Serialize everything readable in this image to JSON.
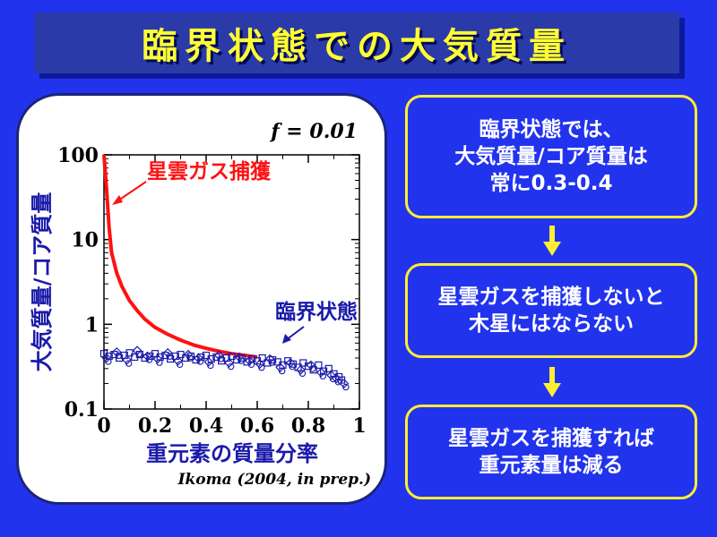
{
  "title": "臨界状態での大気質量",
  "flow": {
    "box1": "臨界状態では、\n大気質量/コア質量は\n常に0.3-0.4",
    "box2": "星雲ガスを捕獲しないと\n木星にはならない",
    "box3": "星雲ガスを捕獲すれば\n重元素量は減る"
  },
  "colors": {
    "background": "#2233ee",
    "title_text": "#ffff33",
    "box_border": "#ffee33",
    "arrow": "#ffee33",
    "curve": "#ff1111",
    "markers": "#1a1aaa",
    "axis_text": "#1a1aaa"
  },
  "chart_data": {
    "type": "line",
    "title": "",
    "param_label": "f = 0.01",
    "xlabel": "重元素の質量分率",
    "ylabel": "大気質量/コア質量",
    "credit": "Ikoma (2004, in prep.)",
    "xlim": [
      0,
      1
    ],
    "ylim": [
      0.1,
      100
    ],
    "yscale": "log",
    "xticks": [
      0,
      0.2,
      0.4,
      0.6,
      0.8,
      1
    ],
    "xtick_labels": [
      "0",
      "0.2",
      "0.4",
      "0.6",
      "0.8",
      "1"
    ],
    "yticks": [
      0.1,
      1,
      10,
      100
    ],
    "ytick_labels": [
      "0.1",
      "1",
      "10",
      "100"
    ],
    "grid": false,
    "annotations": [
      {
        "text": "星雲ガス捕獲",
        "color": "#ff1111"
      },
      {
        "text": "臨界状態",
        "color": "#1a1aaa"
      }
    ],
    "series": [
      {
        "name": "星雲ガス捕獲",
        "kind": "line",
        "color": "#ff1111",
        "x": [
          0.0,
          0.01,
          0.02,
          0.03,
          0.05,
          0.07,
          0.1,
          0.13,
          0.16,
          0.2,
          0.25,
          0.3,
          0.35,
          0.4,
          0.45,
          0.5,
          0.55,
          0.6
        ],
        "y": [
          100,
          40,
          14,
          7,
          4.0,
          2.8,
          1.9,
          1.45,
          1.15,
          0.92,
          0.76,
          0.65,
          0.57,
          0.52,
          0.48,
          0.45,
          0.43,
          0.41
        ]
      },
      {
        "name": "臨界状態",
        "kind": "scatter",
        "color": "#1a1aaa",
        "x": [
          0.0,
          0.02,
          0.04,
          0.06,
          0.08,
          0.1,
          0.12,
          0.14,
          0.16,
          0.18,
          0.2,
          0.22,
          0.24,
          0.26,
          0.28,
          0.3,
          0.32,
          0.34,
          0.36,
          0.38,
          0.4,
          0.42,
          0.44,
          0.46,
          0.48,
          0.5,
          0.52,
          0.54,
          0.56,
          0.58,
          0.6,
          0.62,
          0.64,
          0.66,
          0.68,
          0.7,
          0.72,
          0.74,
          0.76,
          0.78,
          0.8,
          0.82,
          0.84,
          0.86,
          0.88,
          0.9,
          0.92,
          0.93
        ],
        "y": [
          0.45,
          0.42,
          0.44,
          0.4,
          0.43,
          0.46,
          0.41,
          0.44,
          0.4,
          0.42,
          0.45,
          0.41,
          0.43,
          0.39,
          0.42,
          0.44,
          0.4,
          0.42,
          0.38,
          0.41,
          0.43,
          0.39,
          0.41,
          0.37,
          0.4,
          0.42,
          0.38,
          0.4,
          0.36,
          0.39,
          0.37,
          0.4,
          0.35,
          0.38,
          0.36,
          0.33,
          0.37,
          0.34,
          0.31,
          0.35,
          0.32,
          0.29,
          0.33,
          0.28,
          0.3,
          0.26,
          0.24,
          0.22
        ]
      },
      {
        "name": "",
        "kind": "scatter",
        "color": "#1a1aaa",
        "x": [
          0.01,
          0.05,
          0.09,
          0.13,
          0.17,
          0.21,
          0.25,
          0.29,
          0.33,
          0.37,
          0.41,
          0.45,
          0.49,
          0.53,
          0.57,
          0.61,
          0.65,
          0.69,
          0.73,
          0.77,
          0.81,
          0.85,
          0.89,
          0.91,
          0.94
        ],
        "y": [
          0.4,
          0.47,
          0.38,
          0.49,
          0.42,
          0.39,
          0.46,
          0.37,
          0.44,
          0.4,
          0.36,
          0.43,
          0.35,
          0.41,
          0.37,
          0.34,
          0.39,
          0.31,
          0.35,
          0.29,
          0.33,
          0.27,
          0.25,
          0.23,
          0.2
        ]
      }
    ]
  }
}
